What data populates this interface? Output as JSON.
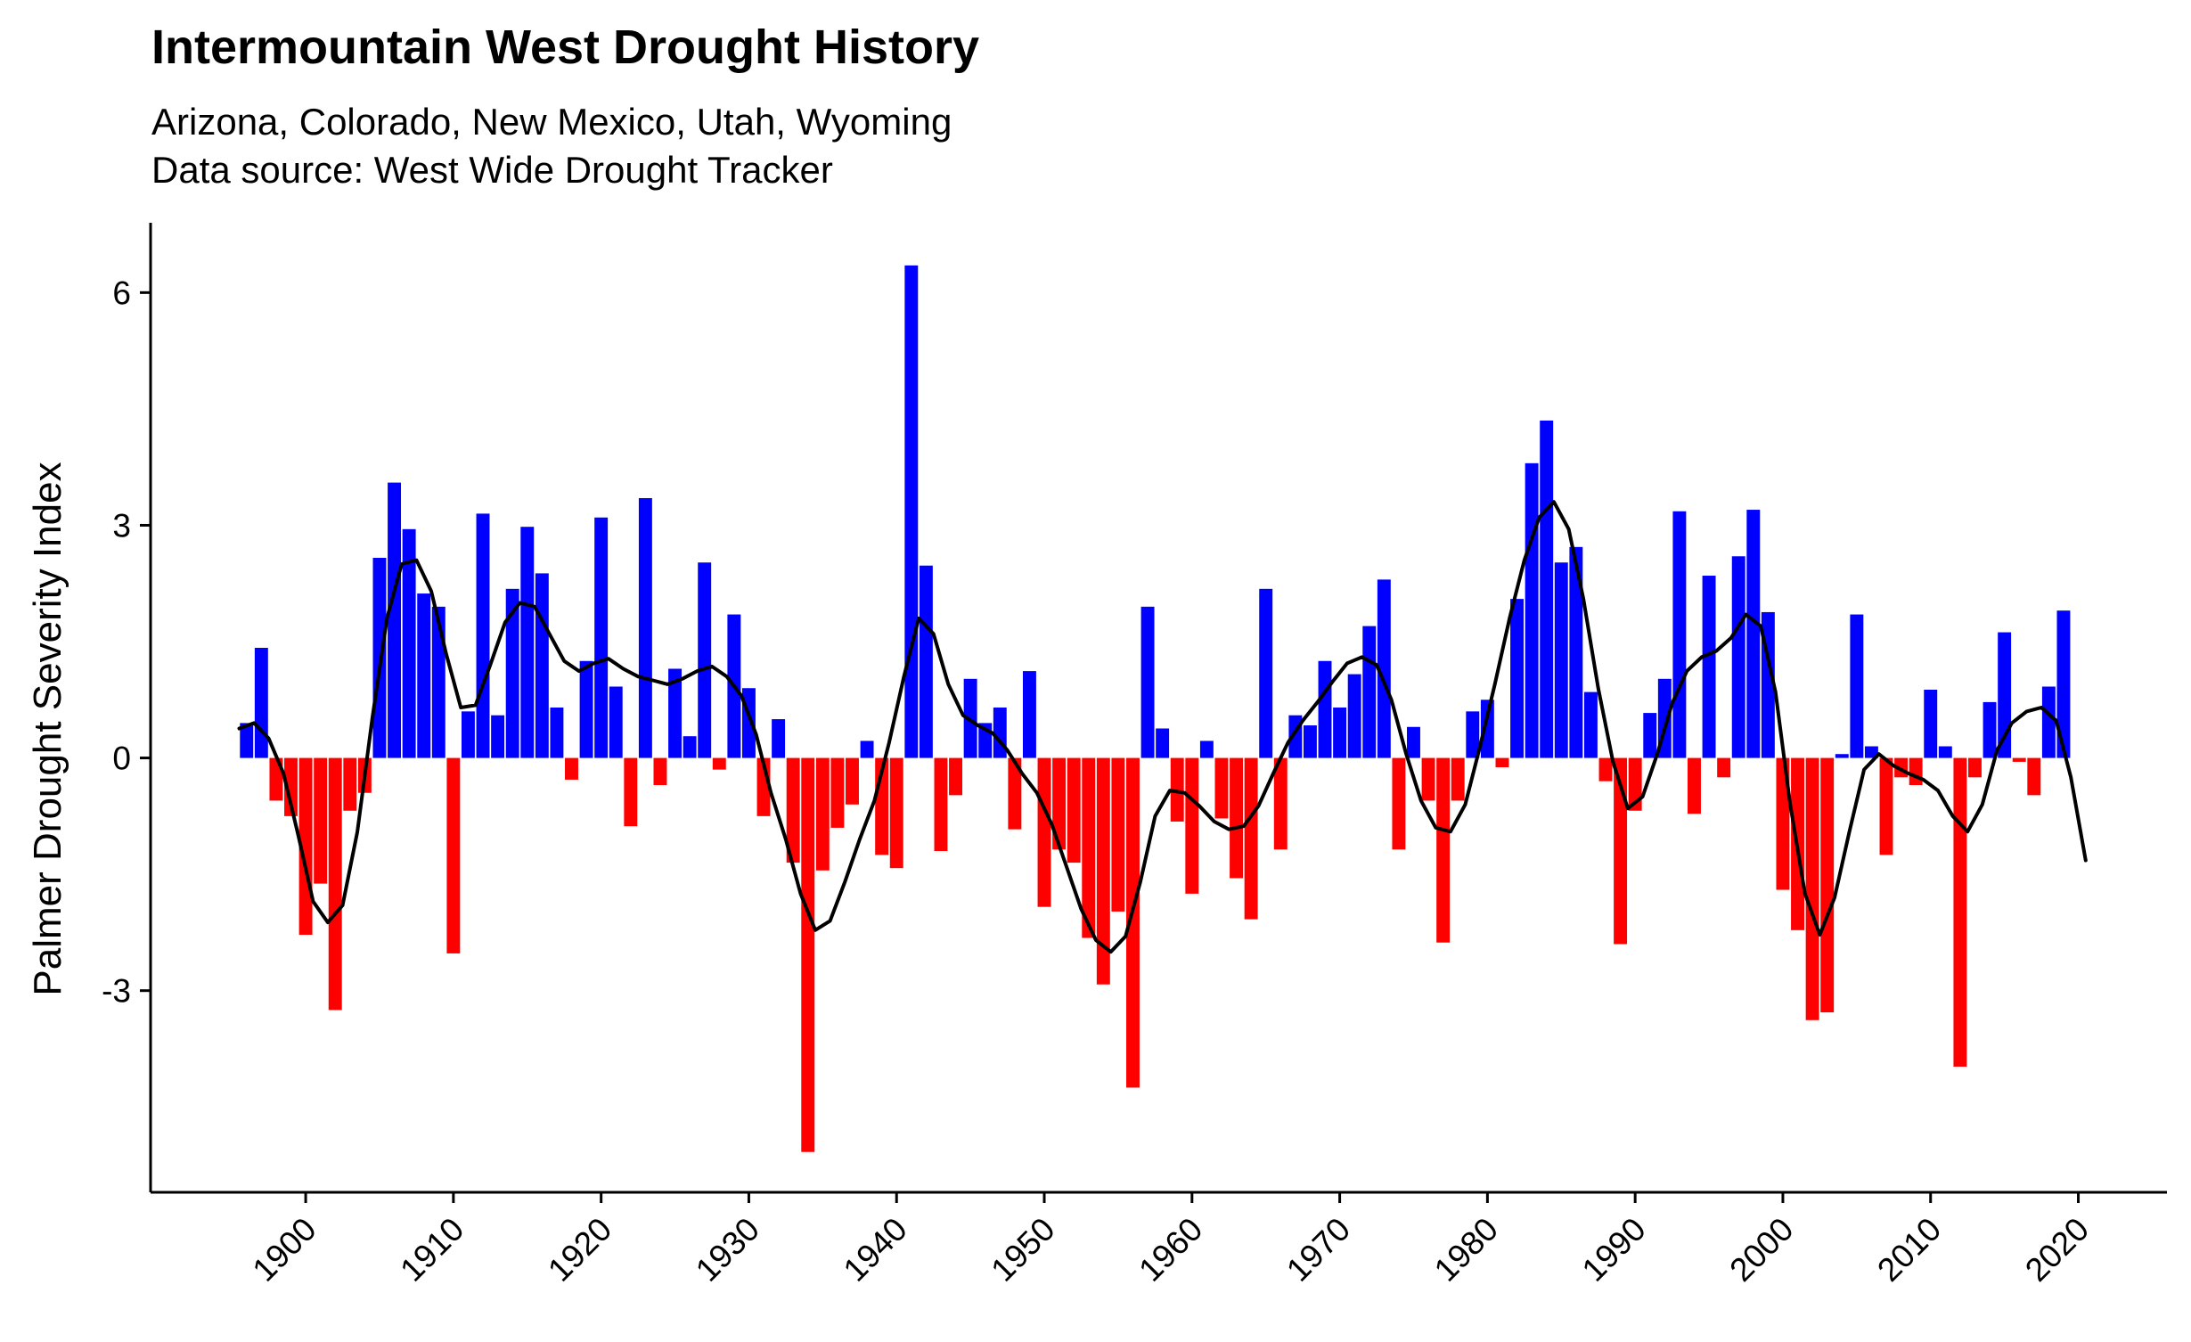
{
  "chart_data": {
    "type": "bar",
    "title": "Intermountain West Drought History",
    "subtitle_lines": [
      "Arizona, Colorado, New Mexico, Utah, Wyoming",
      "Data source: West Wide Drought Tracker"
    ],
    "xlabel": "",
    "ylabel": "Palmer Drought Severity Index",
    "x_ticks": [
      1900,
      1910,
      1920,
      1930,
      1940,
      1950,
      1960,
      1970,
      1980,
      1990,
      2000,
      2010,
      2020
    ],
    "y_ticks": [
      -3,
      0,
      3,
      6
    ],
    "y_tick_labels": [
      "-3",
      "0",
      "3",
      "6"
    ],
    "xlim": [
      1889.5,
      2026
    ],
    "ylim": [
      -5.6,
      6.9
    ],
    "grid": false,
    "colors": {
      "positive": "#0000ff",
      "negative": "#ff0000",
      "smooth_line": "#000000"
    },
    "years": [
      1896,
      1897,
      1898,
      1899,
      1900,
      1901,
      1902,
      1903,
      1904,
      1905,
      1906,
      1907,
      1908,
      1909,
      1910,
      1911,
      1912,
      1913,
      1914,
      1915,
      1916,
      1917,
      1918,
      1919,
      1920,
      1921,
      1922,
      1923,
      1924,
      1925,
      1926,
      1927,
      1928,
      1929,
      1930,
      1931,
      1932,
      1933,
      1934,
      1935,
      1936,
      1937,
      1938,
      1939,
      1940,
      1941,
      1942,
      1943,
      1944,
      1945,
      1946,
      1947,
      1948,
      1949,
      1950,
      1951,
      1952,
      1953,
      1954,
      1955,
      1956,
      1957,
      1958,
      1959,
      1960,
      1961,
      1962,
      1963,
      1964,
      1965,
      1966,
      1967,
      1968,
      1969,
      1970,
      1971,
      1972,
      1973,
      1974,
      1975,
      1976,
      1977,
      1978,
      1979,
      1980,
      1981,
      1982,
      1983,
      1984,
      1985,
      1986,
      1987,
      1988,
      1989,
      1990,
      1991,
      1992,
      1993,
      1994,
      1995,
      1996,
      1997,
      1998,
      1999,
      2000,
      2001,
      2002,
      2003,
      2004,
      2005,
      2006,
      2007,
      2008,
      2009,
      2010,
      2011,
      2012,
      2013,
      2014,
      2015,
      2016,
      2017,
      2018,
      2019
    ],
    "pdsi": [
      0.45,
      1.42,
      -0.55,
      -0.75,
      -2.28,
      -1.62,
      -3.25,
      -0.68,
      -0.45,
      2.58,
      3.55,
      2.95,
      2.12,
      1.95,
      -2.52,
      0.6,
      3.15,
      0.55,
      2.18,
      2.98,
      2.38,
      0.65,
      -0.28,
      1.25,
      3.1,
      0.92,
      -0.88,
      3.35,
      -0.35,
      1.15,
      0.28,
      2.52,
      -0.15,
      1.85,
      0.9,
      -0.75,
      0.5,
      -1.35,
      -5.08,
      -1.45,
      -0.9,
      -0.6,
      0.22,
      -1.25,
      -1.42,
      6.35,
      2.48,
      -1.2,
      -0.48,
      1.02,
      0.45,
      0.65,
      -0.92,
      1.12,
      -1.92,
      -1.18,
      -1.35,
      -2.32,
      -2.92,
      -1.98,
      -4.25,
      1.95,
      0.38,
      -0.82,
      -1.75,
      0.22,
      -0.78,
      -1.55,
      -2.08,
      2.18,
      -1.18,
      0.55,
      0.42,
      1.25,
      0.65,
      1.08,
      1.7,
      2.3,
      -1.18,
      0.4,
      -0.55,
      -2.38,
      -0.55,
      0.6,
      0.75,
      -0.12,
      2.05,
      3.8,
      4.35,
      2.52,
      2.72,
      0.85,
      -0.3,
      -2.4,
      -0.68,
      0.58,
      1.02,
      3.18,
      -0.72,
      2.35,
      -0.25,
      2.6,
      3.2,
      1.88,
      -1.7,
      -2.22,
      -3.38,
      -3.28,
      0.05,
      1.85,
      0.15,
      -1.25,
      -0.25,
      -0.35,
      0.88,
      0.15,
      -3.98,
      -0.25,
      0.72,
      1.62,
      -0.05,
      -0.48,
      0.92,
      1.9
    ],
    "smooth": [
      [
        1895.5,
        0.38
      ],
      [
        1896.5,
        0.45
      ],
      [
        1897.5,
        0.25
      ],
      [
        1898.5,
        -0.2
      ],
      [
        1899.5,
        -1.0
      ],
      [
        1900.5,
        -1.85
      ],
      [
        1901.5,
        -2.12
      ],
      [
        1902.5,
        -1.9
      ],
      [
        1903.5,
        -0.95
      ],
      [
        1904.5,
        0.5
      ],
      [
        1905.5,
        1.8
      ],
      [
        1906.5,
        2.5
      ],
      [
        1907.5,
        2.55
      ],
      [
        1908.5,
        2.15
      ],
      [
        1909.5,
        1.35
      ],
      [
        1910.5,
        0.65
      ],
      [
        1911.5,
        0.68
      ],
      [
        1912.5,
        1.2
      ],
      [
        1913.5,
        1.75
      ],
      [
        1914.5,
        2.0
      ],
      [
        1915.5,
        1.95
      ],
      [
        1916.5,
        1.6
      ],
      [
        1917.5,
        1.25
      ],
      [
        1918.5,
        1.12
      ],
      [
        1919.5,
        1.22
      ],
      [
        1920.5,
        1.28
      ],
      [
        1921.5,
        1.15
      ],
      [
        1922.5,
        1.05
      ],
      [
        1923.5,
        1.0
      ],
      [
        1924.5,
        0.95
      ],
      [
        1925.5,
        1.02
      ],
      [
        1926.5,
        1.12
      ],
      [
        1927.5,
        1.18
      ],
      [
        1928.5,
        1.05
      ],
      [
        1929.5,
        0.8
      ],
      [
        1930.5,
        0.3
      ],
      [
        1931.5,
        -0.45
      ],
      [
        1932.5,
        -1.05
      ],
      [
        1933.5,
        -1.75
      ],
      [
        1934.5,
        -2.22
      ],
      [
        1935.5,
        -2.1
      ],
      [
        1936.5,
        -1.6
      ],
      [
        1937.5,
        -1.05
      ],
      [
        1938.5,
        -0.55
      ],
      [
        1939.5,
        0.2
      ],
      [
        1940.5,
        1.05
      ],
      [
        1941.5,
        1.8
      ],
      [
        1942.5,
        1.6
      ],
      [
        1943.5,
        0.95
      ],
      [
        1944.5,
        0.55
      ],
      [
        1945.5,
        0.42
      ],
      [
        1946.5,
        0.32
      ],
      [
        1947.5,
        0.1
      ],
      [
        1948.5,
        -0.2
      ],
      [
        1949.5,
        -0.45
      ],
      [
        1950.5,
        -0.85
      ],
      [
        1951.5,
        -1.4
      ],
      [
        1952.5,
        -1.95
      ],
      [
        1953.5,
        -2.35
      ],
      [
        1954.5,
        -2.5
      ],
      [
        1955.5,
        -2.3
      ],
      [
        1956.5,
        -1.6
      ],
      [
        1957.5,
        -0.75
      ],
      [
        1958.5,
        -0.42
      ],
      [
        1959.5,
        -0.45
      ],
      [
        1960.5,
        -0.62
      ],
      [
        1961.5,
        -0.82
      ],
      [
        1962.5,
        -0.92
      ],
      [
        1963.5,
        -0.88
      ],
      [
        1964.5,
        -0.62
      ],
      [
        1965.5,
        -0.2
      ],
      [
        1966.5,
        0.2
      ],
      [
        1967.5,
        0.48
      ],
      [
        1968.5,
        0.72
      ],
      [
        1969.5,
        0.98
      ],
      [
        1970.5,
        1.22
      ],
      [
        1971.5,
        1.3
      ],
      [
        1972.5,
        1.2
      ],
      [
        1973.5,
        0.75
      ],
      [
        1974.5,
        0.05
      ],
      [
        1975.5,
        -0.55
      ],
      [
        1976.5,
        -0.9
      ],
      [
        1977.5,
        -0.95
      ],
      [
        1978.5,
        -0.6
      ],
      [
        1979.5,
        0.15
      ],
      [
        1980.5,
        0.95
      ],
      [
        1981.5,
        1.8
      ],
      [
        1982.5,
        2.55
      ],
      [
        1983.5,
        3.1
      ],
      [
        1984.5,
        3.3
      ],
      [
        1985.5,
        2.95
      ],
      [
        1986.5,
        2.05
      ],
      [
        1987.5,
        0.9
      ],
      [
        1988.5,
        -0.05
      ],
      [
        1989.5,
        -0.65
      ],
      [
        1990.5,
        -0.5
      ],
      [
        1991.5,
        0.05
      ],
      [
        1992.5,
        0.7
      ],
      [
        1993.5,
        1.12
      ],
      [
        1994.5,
        1.3
      ],
      [
        1995.5,
        1.38
      ],
      [
        1996.5,
        1.55
      ],
      [
        1997.5,
        1.85
      ],
      [
        1998.5,
        1.7
      ],
      [
        1999.5,
        0.85
      ],
      [
        2000.5,
        -0.6
      ],
      [
        2001.5,
        -1.75
      ],
      [
        2002.5,
        -2.28
      ],
      [
        2003.5,
        -1.8
      ],
      [
        2004.5,
        -0.95
      ],
      [
        2005.5,
        -0.15
      ],
      [
        2006.5,
        0.05
      ],
      [
        2007.5,
        -0.1
      ],
      [
        2008.5,
        -0.2
      ],
      [
        2009.5,
        -0.28
      ],
      [
        2010.5,
        -0.42
      ],
      [
        2011.5,
        -0.75
      ],
      [
        2012.5,
        -0.95
      ],
      [
        2013.5,
        -0.6
      ],
      [
        2014.5,
        0.1
      ],
      [
        2015.5,
        0.45
      ],
      [
        2016.5,
        0.6
      ],
      [
        2017.5,
        0.65
      ],
      [
        2018.5,
        0.48
      ],
      [
        2019.5,
        -0.25
      ],
      [
        2020.5,
        -1.32
      ]
    ]
  }
}
